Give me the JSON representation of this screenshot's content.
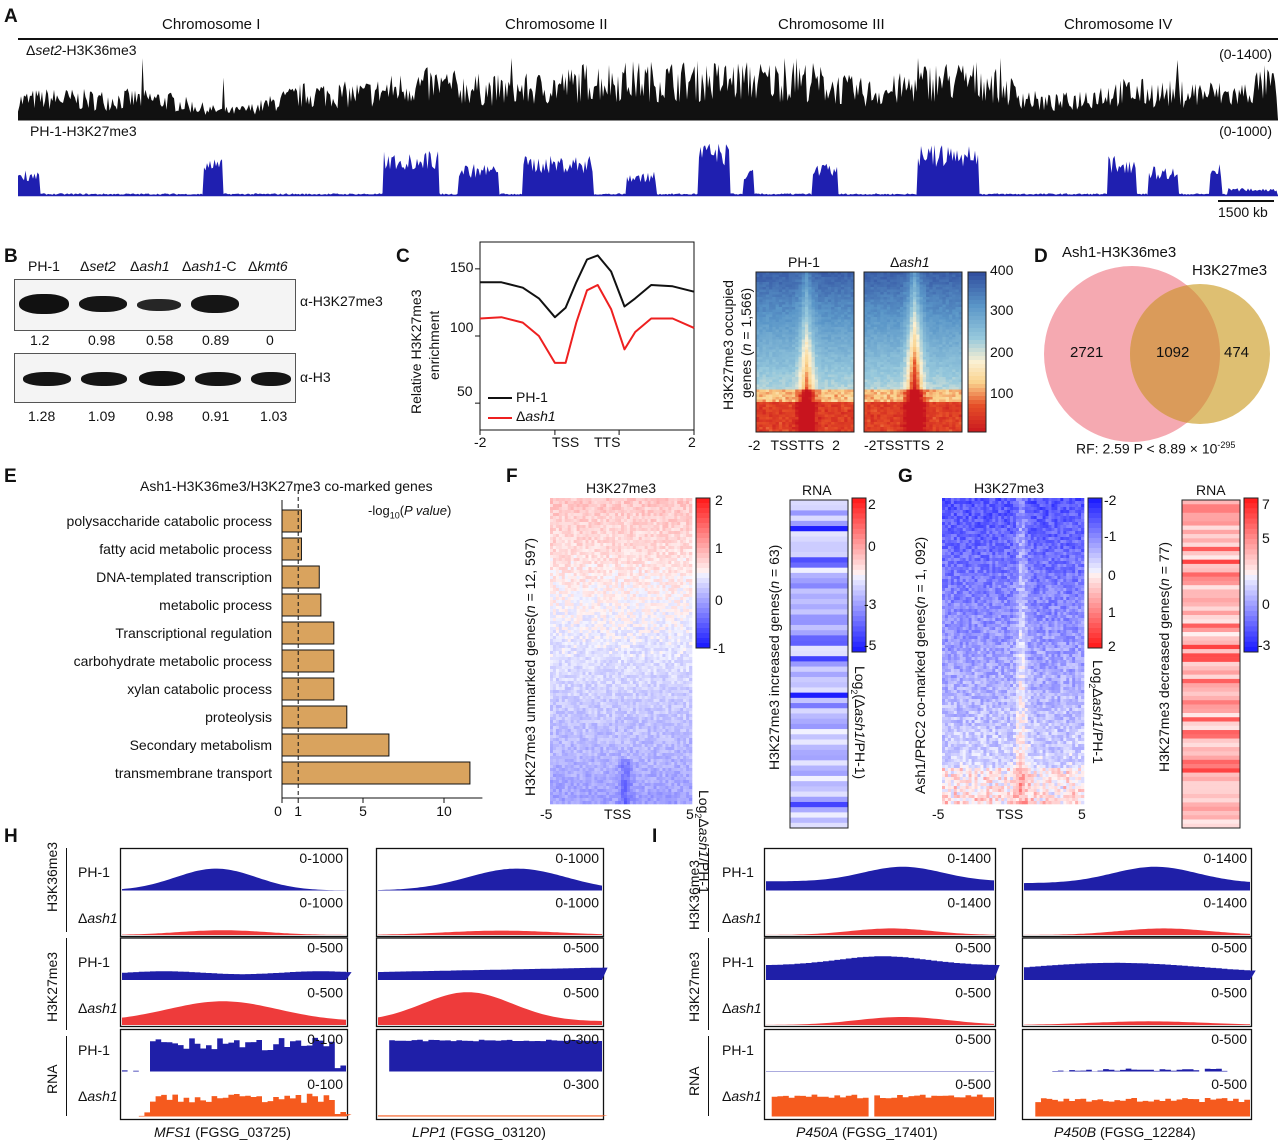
{
  "panels": {
    "A": "A",
    "B": "B",
    "C": "C",
    "D": "D",
    "E": "E",
    "F": "F",
    "G": "G",
    "H": "H",
    "I": "I"
  },
  "colors": {
    "blue": "#1f1fa8",
    "red": "#ee3b3b",
    "orange": "#f55a1e",
    "bar": "#d9a460",
    "venn_pink": "#f4a0a8",
    "venn_gold": "#d9b45a"
  },
  "panelA": {
    "chromosomes": [
      "Chromosome I",
      "Chromosome II",
      "Chromosome III",
      "Chromosome IV"
    ],
    "track1_label_prefix": "Δ",
    "track1_label_gene": "set2",
    "track1_label_suffix": "-H3K36me3",
    "track1_range": "(0-1400)",
    "track2_label": "PH-1-H3K27me3",
    "track2_range": "(0-1000)",
    "scale": "1500 kb"
  },
  "panelB": {
    "lanes": [
      "PH-1",
      "Δset2",
      "Δash1",
      "Δash1-C",
      "Δkmt6"
    ],
    "blot1_label": "α-H3K27me3",
    "blot1_values": [
      "1.2",
      "0.98",
      "0.58",
      "0.89",
      "0"
    ],
    "blot2_label": "α-H3",
    "blot2_values": [
      "1.28",
      "1.09",
      "0.98",
      "0.91",
      "1.03"
    ]
  },
  "panelC": {
    "ylabel_line1": "Relative H3K27me3",
    "ylabel_line2": "enrichment",
    "yticks": [
      "150",
      "100",
      "50"
    ],
    "xticks": [
      "-2",
      "TSS",
      "TTS",
      "2"
    ],
    "legend": [
      "PH-1",
      "Δash1"
    ],
    "heat_ylabel_line1": "H3K27me3 occupied",
    "heat_ylabel_line2": "genes (n = 1,566)",
    "heat_titles": [
      "PH-1",
      "Δash1"
    ],
    "heat_xticks": [
      "-2",
      "TSS",
      "TTS",
      "2"
    ],
    "colorbar_ticks": [
      "400",
      "300",
      "200",
      "100"
    ]
  },
  "panelD": {
    "set1": "Ash1-H3K36me3",
    "set2": "H3K27me3",
    "only1": "2721",
    "both": "1092",
    "only2": "474",
    "stat": "RF: 2.59 P < 8.89 × 10",
    "stat_exp": "-295"
  },
  "panelE": {
    "title": "Ash1-H3K36me3/H3K27me3 co-marked genes",
    "xlabel": "-log10(P value)",
    "xticks": [
      "0",
      "1",
      "5",
      "10"
    ]
  },
  "panelF": {
    "heat_title": "H3K27me3",
    "ylabel": "H3K27me3 unmarked genes(n = 12, 597)",
    "xticks": [
      "-5",
      "TSS",
      "5"
    ],
    "cbar_ticks": [
      "2",
      "1",
      "0",
      "-1"
    ],
    "cbar_label": "Log2Δash1/PH-1",
    "rna_title": "RNA",
    "rna_ylabel": "H3K27me3 increased genes(n = 63)",
    "rna_cbar_ticks": [
      "2",
      "0",
      "-3",
      "-5"
    ],
    "rna_cbar_label": "Log2(Δash1/PH-1)"
  },
  "panelG": {
    "heat_title": "H3K27me3",
    "ylabel": "Ash1/PRC2 co-marked genes(n = 1, 092)",
    "xticks": [
      "-5",
      "TSS",
      "5"
    ],
    "cbar_ticks": [
      "-2",
      "-1",
      "0",
      "1",
      "2"
    ],
    "cbar_label": "Log2Δash1/PH-1",
    "rna_title": "RNA",
    "rna_ylabel": "H3K27me3 decreased genes(n = 77)",
    "rna_cbar_ticks": [
      "7",
      "5",
      "0",
      "-3"
    ],
    "rna_cbar_label": "Log2(Δash1/PH-1)"
  },
  "panelH": {
    "groups": [
      "H3K36me3",
      "H3K27me3",
      "RNA"
    ],
    "rows": [
      "PH-1",
      "Δash1",
      "PH-1",
      "Δash1",
      "PH-1",
      "Δash1"
    ],
    "gene1": "MFS1",
    "gene1_id": "(FGSG_03725)",
    "gene1_ranges": [
      "0-1000",
      "0-1000",
      "0-500",
      "0-500",
      "0-100",
      "0-100"
    ],
    "gene2": "LPP1",
    "gene2_id": "(FGSG_03120)",
    "gene2_ranges": [
      "0-1000",
      "0-1000",
      "0-500",
      "0-500",
      "0-300",
      "0-300"
    ]
  },
  "panelI": {
    "groups": [
      "H3K36me3",
      "H3K27me3",
      "RNA"
    ],
    "rows": [
      "PH-1",
      "Δash1",
      "PH-1",
      "Δash1",
      "PH-1",
      "Δash1"
    ],
    "gene1": "P450A",
    "gene1_id": "(FGSG_17401)",
    "gene1_ranges": [
      "0-1400",
      "0-1400",
      "0-500",
      "0-500",
      "0-500",
      "0-500"
    ],
    "gene2": "P450B",
    "gene2_id": "(FGSG_12284)",
    "gene2_ranges": [
      "0-1400",
      "0-1400",
      "0-500",
      "0-500",
      "0-500",
      "0-500"
    ]
  },
  "chart_data": [
    {
      "type": "bar",
      "title": "Ash1-H3K36me3/H3K27me3 co-marked genes",
      "xlabel": "-log10(P value)",
      "orientation": "horizontal",
      "categories": [
        "polysaccharide catabolic process",
        "fatty acid metabolic process",
        "DNA-templated transcription",
        "metabolic process",
        "Transcriptional regulation",
        "carbohydrate metabolic process",
        "xylan catabolic process",
        "proteolysis",
        "Secondary metabolism",
        "transmembrane transport"
      ],
      "values": [
        1.2,
        1.2,
        2.3,
        2.4,
        3.2,
        3.2,
        3.2,
        4.0,
        6.6,
        11.6
      ],
      "xlim": [
        0,
        12
      ],
      "reference_line": 1
    },
    {
      "type": "line",
      "ylabel": "Relative H3K27me3 enrichment",
      "x": [
        -2,
        -1.6,
        -1.2,
        -0.9,
        -0.6,
        -0.4,
        -0.2,
        0,
        0.2,
        0.45,
        0.7,
        0.9,
        1.2,
        1.6,
        2
      ],
      "ylim": [
        30,
        170
      ],
      "series": [
        {
          "name": "PH-1",
          "values": [
            140,
            140,
            136,
            128,
            114,
            121,
            140,
            157,
            160,
            148,
            122,
            128,
            138,
            137,
            133
          ]
        },
        {
          "name": "Δash1",
          "values": [
            113,
            114,
            110,
            100,
            80,
            80,
            110,
            134,
            138,
            120,
            90,
            103,
            113,
            113,
            106
          ]
        }
      ]
    },
    {
      "type": "table",
      "title": "Venn",
      "categories": [
        "Ash1-H3K36me3 only",
        "both",
        "H3K27me3 only"
      ],
      "values": [
        2721,
        1092,
        474
      ]
    }
  ]
}
